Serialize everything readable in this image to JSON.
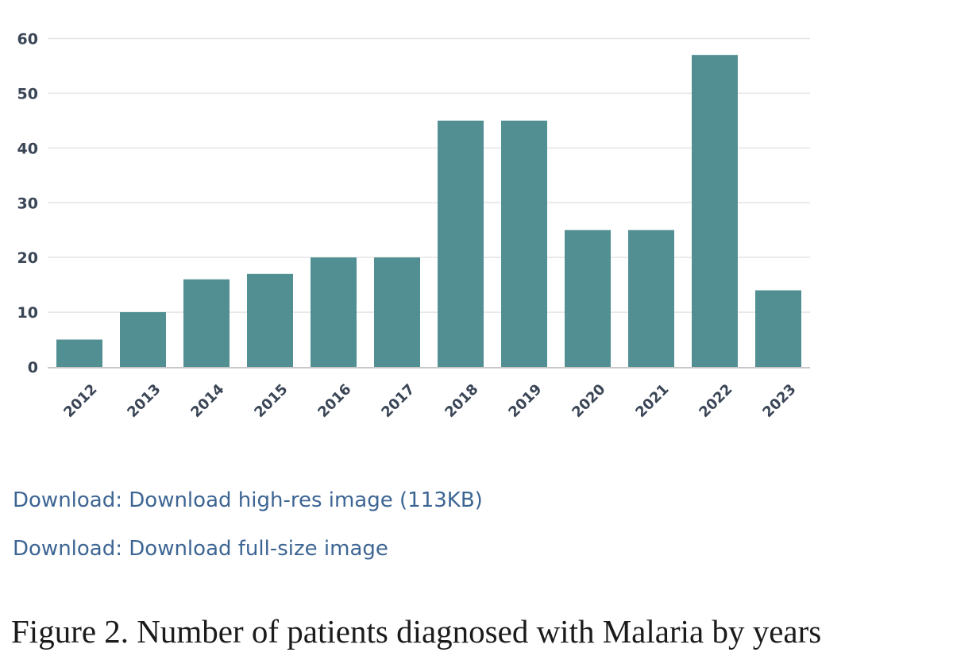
{
  "chart_data": {
    "type": "bar",
    "categories": [
      "2012",
      "2013",
      "2014",
      "2015",
      "2016",
      "2017",
      "2018",
      "2019",
      "2020",
      "2021",
      "2022",
      "2023"
    ],
    "values": [
      5,
      10,
      16,
      17,
      20,
      20,
      45,
      45,
      25,
      25,
      57,
      14
    ],
    "ylim": [
      0,
      60
    ],
    "yticks": [
      "0",
      "10",
      "20",
      "30",
      "40",
      "50",
      "60"
    ],
    "grid": true,
    "bar_color": "#528f93",
    "grid_color": "#e5e5e5",
    "axis_color": "#c8c8c8",
    "tick_color": "#3a4556"
  },
  "links": [
    {
      "text": "Download: Download high-res image (113KB)"
    },
    {
      "text": "Download: Download full-size image"
    }
  ],
  "caption": "Figure 2. Number of patients diagnosed with Malaria by years",
  "colors": {
    "link": "#3d6593",
    "caption": "#1b1b1b"
  }
}
